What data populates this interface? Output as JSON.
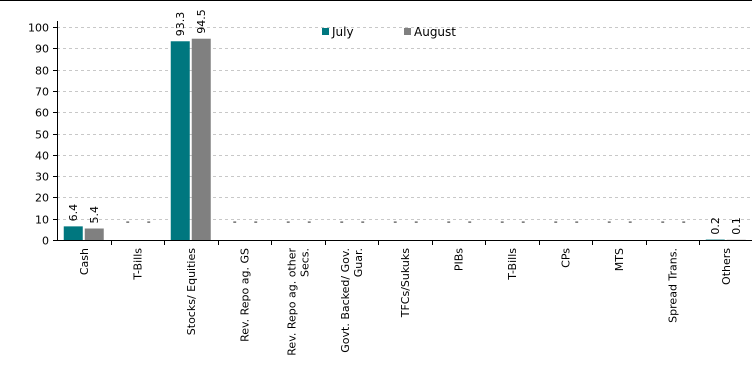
{
  "chart_data": {
    "type": "bar",
    "title": "",
    "xlabel": "",
    "ylabel": "",
    "ylim": [
      0,
      100
    ],
    "yticks": [
      0,
      10,
      20,
      30,
      40,
      50,
      60,
      70,
      80,
      90,
      100
    ],
    "grid": true,
    "legend_position": "top-center",
    "categories": [
      "Cash",
      "T-Bills",
      "Stocks/ Equities",
      "Rev. Repo ag. GS",
      "Rev. Repo ag. other Secs.",
      "Govt. Backed/ Gov. Guar.",
      "TFCs/Sukuks",
      "PIBs",
      "T-Bills",
      "CPs",
      "MTS",
      "Spread Trans.",
      "Others"
    ],
    "series": [
      {
        "name": "July",
        "color": "#00777f",
        "values": [
          6.4,
          0,
          93.3,
          0,
          0,
          0,
          0,
          0,
          0,
          0,
          0,
          0,
          0.2
        ],
        "labels": [
          "6.4",
          "-",
          "93.3",
          "-",
          "-",
          "-",
          "-",
          "-",
          "-",
          "-",
          "-",
          "-",
          "0.2"
        ]
      },
      {
        "name": "August",
        "color": "#808080",
        "values": [
          5.4,
          0,
          94.5,
          0,
          0,
          0,
          0,
          0,
          0,
          0,
          0,
          0,
          0.1
        ],
        "labels": [
          "5.4",
          "-",
          "94.5",
          "-",
          "-",
          "-",
          "-",
          "-",
          "-",
          "-",
          "-",
          "-",
          "0.1"
        ]
      }
    ]
  }
}
